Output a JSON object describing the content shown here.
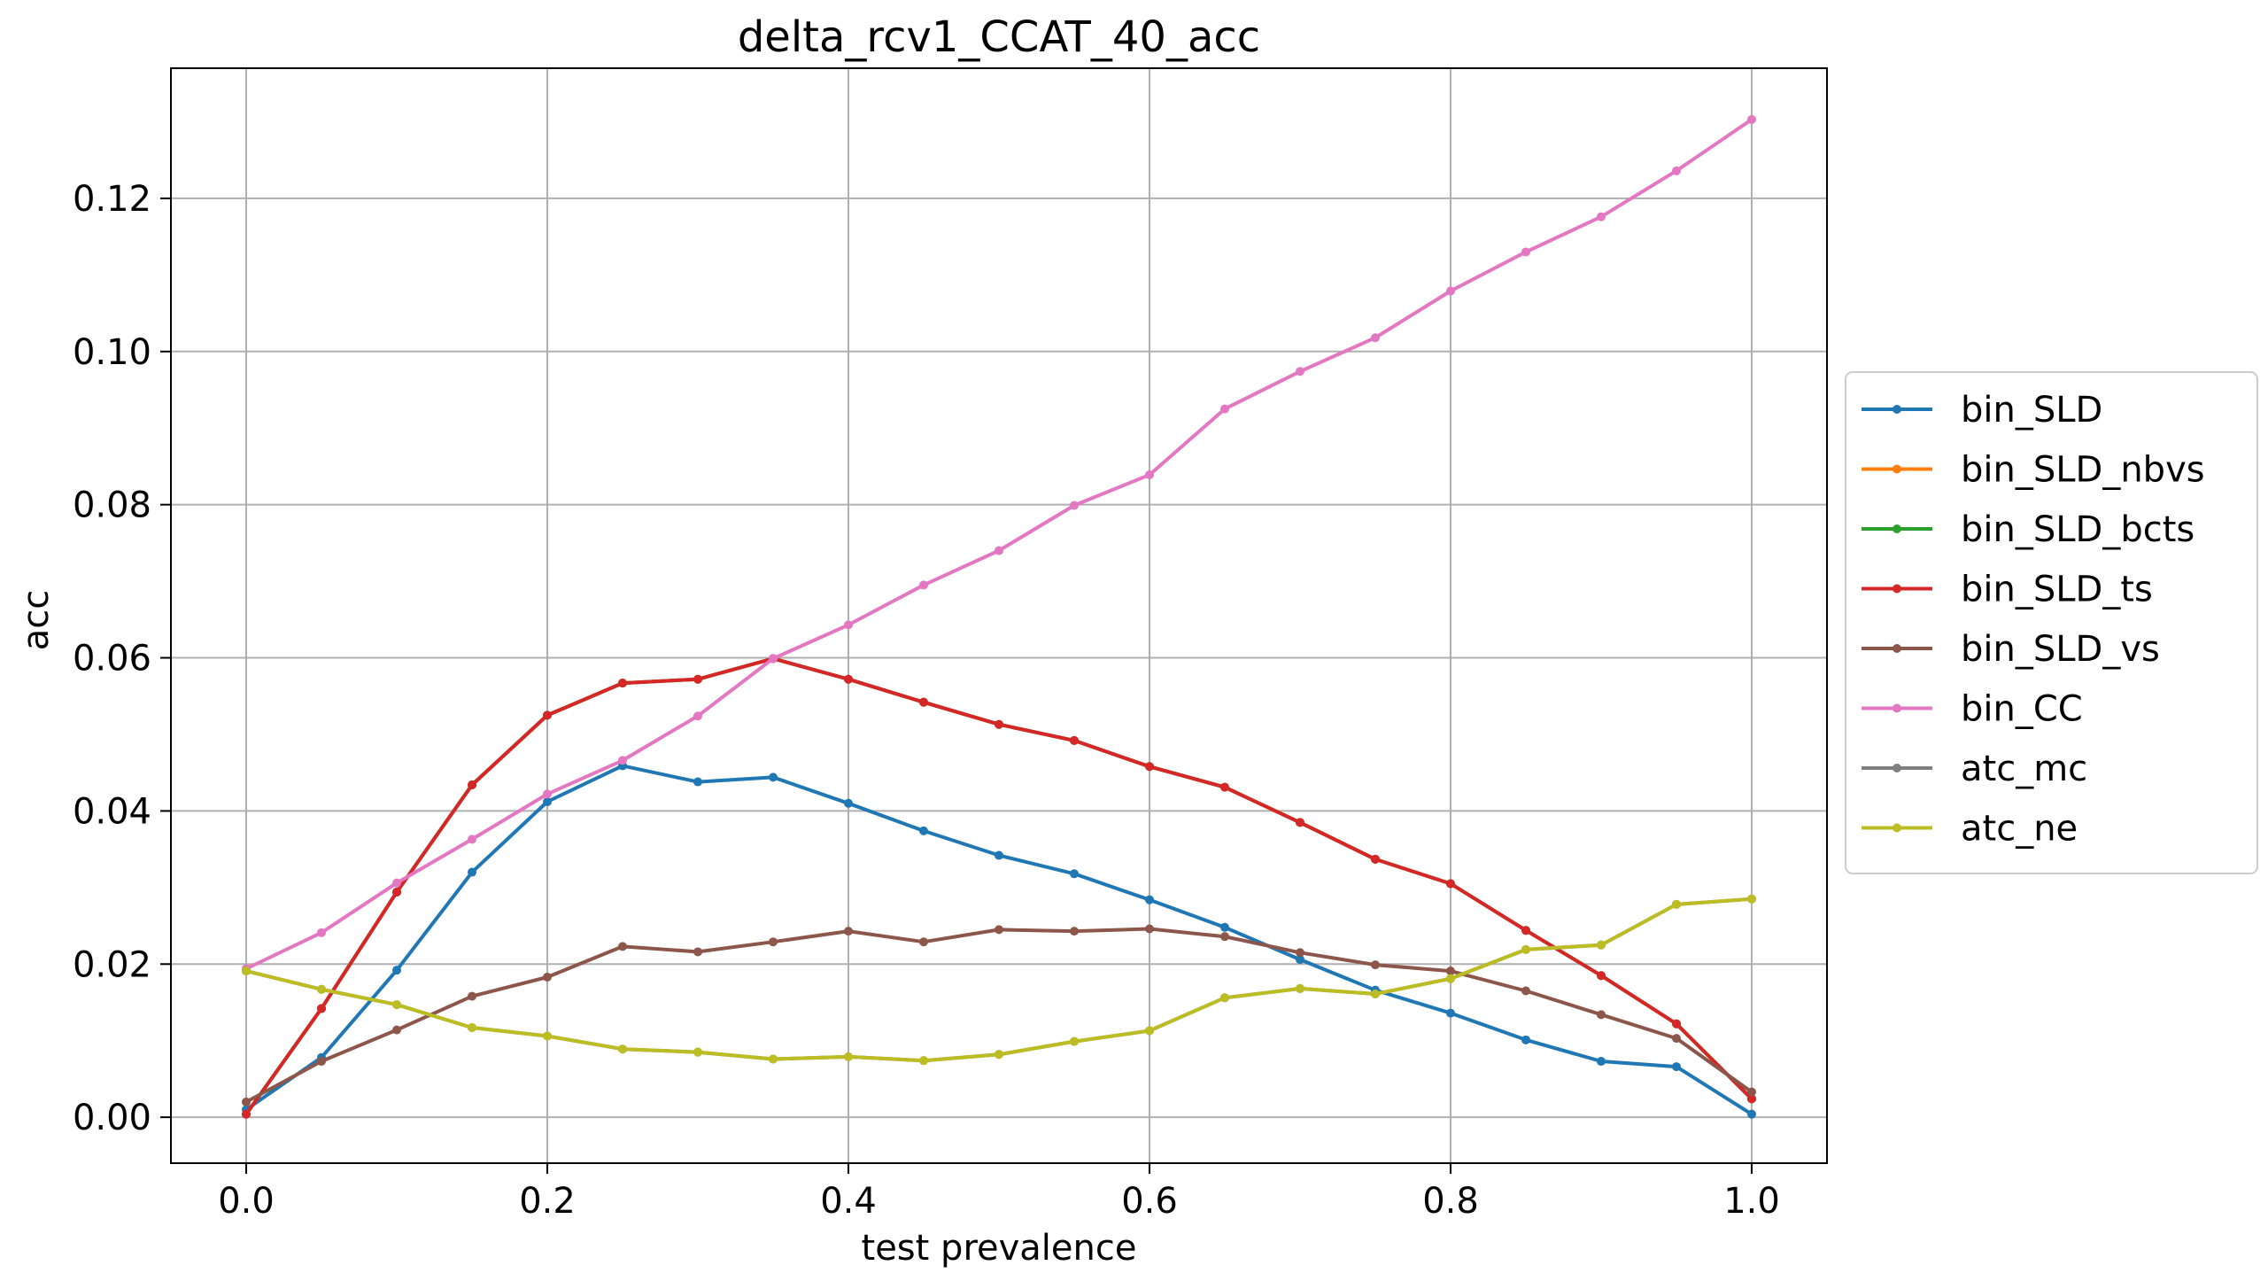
{
  "chart_data": {
    "type": "line",
    "title": "delta_rcv1_CCAT_40_acc",
    "xlabel": "test prevalence",
    "ylabel": "acc",
    "xlim": [
      -0.05,
      1.05
    ],
    "ylim": [
      -0.006,
      0.137
    ],
    "x_ticks": [
      0.0,
      0.2,
      0.4,
      0.6,
      0.8,
      1.0
    ],
    "x_tick_labels": [
      "0.0",
      "0.2",
      "0.4",
      "0.6",
      "0.8",
      "1.0"
    ],
    "y_ticks": [
      0.0,
      0.02,
      0.04,
      0.06,
      0.08,
      0.1,
      0.12
    ],
    "y_tick_labels": [
      "0.00",
      "0.02",
      "0.04",
      "0.06",
      "0.08",
      "0.10",
      "0.12"
    ],
    "grid": true,
    "legend_position": "right, outside",
    "x": [
      0.0,
      0.05,
      0.1,
      0.15,
      0.2,
      0.25,
      0.3,
      0.35,
      0.4,
      0.45,
      0.5,
      0.55,
      0.6,
      0.65,
      0.7,
      0.75,
      0.8,
      0.85,
      0.9,
      0.95,
      1.0
    ],
    "series": [
      {
        "name": "bin_SLD",
        "color": "#1f77b4",
        "values": [
          0.001,
          0.0078,
          0.0192,
          0.032,
          0.0412,
          0.0459,
          0.0438,
          0.0444,
          0.041,
          0.0374,
          0.0342,
          0.0318,
          0.0284,
          0.0248,
          0.0206,
          0.0166,
          0.0136,
          0.0101,
          0.0073,
          0.0066,
          0.0004
        ]
      },
      {
        "name": "bin_SLD_nbvs",
        "color": "#ff7f0e",
        "values": [
          0.0004,
          0.0142,
          0.0294,
          0.0434,
          0.0525,
          0.0567,
          0.0572,
          0.0599,
          0.0572,
          0.0542,
          0.0513,
          0.0492,
          0.0458,
          0.0431,
          0.0385,
          0.0337,
          0.0305,
          0.0244,
          0.0185,
          0.0122,
          0.0024
        ]
      },
      {
        "name": "bin_SLD_bcts",
        "color": "#2ca02c",
        "values": [
          0.0004,
          0.0142,
          0.0294,
          0.0434,
          0.0525,
          0.0567,
          0.0572,
          0.0599,
          0.0572,
          0.0542,
          0.0513,
          0.0492,
          0.0458,
          0.0431,
          0.0385,
          0.0337,
          0.0305,
          0.0244,
          0.0185,
          0.0122,
          0.0024
        ]
      },
      {
        "name": "bin_SLD_ts",
        "color": "#d62728",
        "values": [
          0.0004,
          0.0142,
          0.0294,
          0.0434,
          0.0525,
          0.0567,
          0.0572,
          0.0599,
          0.0572,
          0.0542,
          0.0513,
          0.0492,
          0.0458,
          0.0431,
          0.0385,
          0.0337,
          0.0305,
          0.0244,
          0.0185,
          0.0122,
          0.0024
        ]
      },
      {
        "name": "bin_SLD_vs",
        "color": "#8c564b",
        "values": [
          0.002,
          0.0073,
          0.0114,
          0.0158,
          0.0183,
          0.0223,
          0.0216,
          0.0229,
          0.0243,
          0.0229,
          0.0245,
          0.0243,
          0.0246,
          0.0236,
          0.0215,
          0.0199,
          0.0191,
          0.0165,
          0.0134,
          0.0103,
          0.0033
        ]
      },
      {
        "name": "bin_CC",
        "color": "#e377c2",
        "values": [
          0.0194,
          0.0241,
          0.0306,
          0.0363,
          0.0422,
          0.0466,
          0.0524,
          0.0599,
          0.0643,
          0.0695,
          0.074,
          0.0799,
          0.0839,
          0.0925,
          0.0974,
          0.1018,
          0.1079,
          0.113,
          0.1176,
          0.1236,
          0.1303
        ]
      },
      {
        "name": "atc_mc",
        "color": "#7f7f7f",
        "values": [
          0.0191,
          0.0167,
          0.0147,
          0.0117,
          0.0106,
          0.0089,
          0.0085,
          0.0076,
          0.0079,
          0.0074,
          0.0082,
          0.0099,
          0.0113,
          0.0156,
          0.0168,
          0.0161,
          0.0181,
          0.0219,
          0.0225,
          0.0278,
          0.0285
        ]
      },
      {
        "name": "atc_ne",
        "color": "#bcbd22",
        "values": [
          0.0191,
          0.0167,
          0.0147,
          0.0117,
          0.0106,
          0.0089,
          0.0085,
          0.0076,
          0.0079,
          0.0074,
          0.0082,
          0.0099,
          0.0113,
          0.0156,
          0.0168,
          0.0161,
          0.0181,
          0.0219,
          0.0225,
          0.0278,
          0.0285
        ]
      }
    ]
  }
}
